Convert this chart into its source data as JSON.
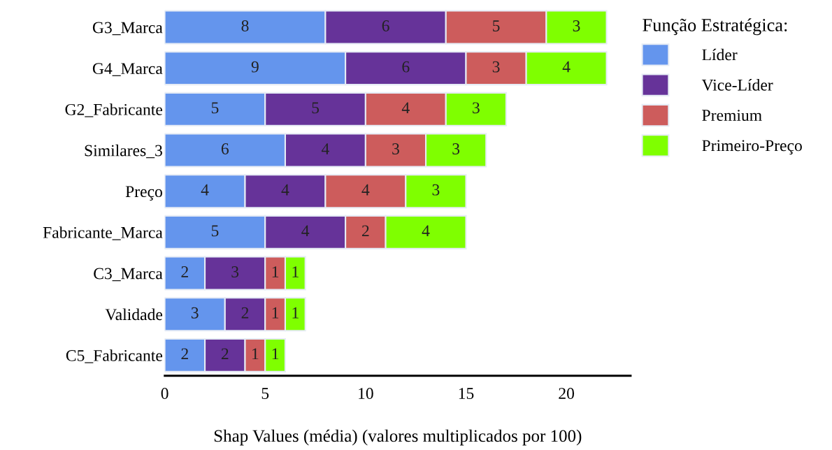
{
  "chart_data": {
    "type": "bar",
    "orientation": "horizontal",
    "stacked": true,
    "xlabel": "Shap Values (média) (valores multiplicados por 100)",
    "legend_title": "Função Estratégica:",
    "categories": [
      "G3_Marca",
      "G4_Marca",
      "G2_Fabricante",
      "Similares_3",
      "Preço",
      "Fabricante_Marca",
      "C3_Marca",
      "Validade",
      "C5_Fabricante"
    ],
    "series": [
      {
        "name": "Líder",
        "color": "#6495ed",
        "values": [
          8,
          9,
          5,
          6,
          4,
          5,
          2,
          3,
          2
        ]
      },
      {
        "name": "Vice-Líder",
        "color": "#663399",
        "values": [
          6,
          6,
          5,
          4,
          4,
          4,
          3,
          2,
          2
        ]
      },
      {
        "name": "Premium",
        "color": "#cd5c5c",
        "values": [
          5,
          3,
          4,
          3,
          4,
          2,
          1,
          1,
          1
        ]
      },
      {
        "name": "Primeiro-Preço",
        "color": "#7fff00",
        "values": [
          3,
          4,
          3,
          3,
          3,
          4,
          1,
          1,
          1
        ]
      }
    ],
    "xlim": [
      0,
      23.2
    ],
    "xticks": [
      0,
      5,
      10,
      15,
      20
    ],
    "data_labels": true,
    "grid": false,
    "legend": "top right"
  }
}
